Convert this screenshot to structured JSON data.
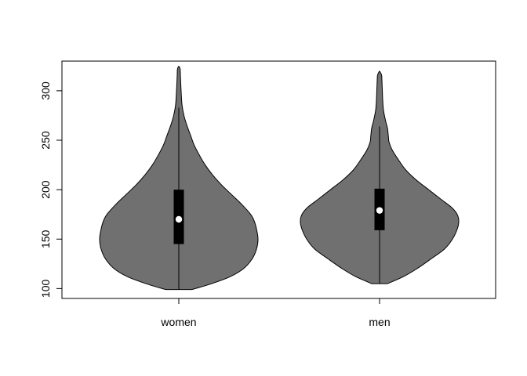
{
  "chart_data": {
    "type": "violin",
    "categories": [
      "women",
      "men"
    ],
    "ylim": [
      90,
      330
    ],
    "yticks": [
      100,
      150,
      200,
      250,
      300
    ],
    "ytick_labels": [
      "100",
      "150",
      "200",
      "250",
      "300"
    ],
    "fill_color": "#707070",
    "box_color": "#000000",
    "median_color": "#ffffff",
    "series": [
      {
        "min": 99,
        "max": 325,
        "whisker_low": 99,
        "whisker_high": 283,
        "q1": 145,
        "median": 170,
        "q3": 200,
        "density": [
          [
            99,
            18
          ],
          [
            105,
            45
          ],
          [
            112,
            70
          ],
          [
            120,
            88
          ],
          [
            130,
            100
          ],
          [
            140,
            106
          ],
          [
            150,
            108
          ],
          [
            160,
            106
          ],
          [
            168,
            103
          ],
          [
            175,
            98
          ],
          [
            185,
            86
          ],
          [
            195,
            72
          ],
          [
            205,
            58
          ],
          [
            215,
            46
          ],
          [
            225,
            36
          ],
          [
            235,
            28
          ],
          [
            245,
            21
          ],
          [
            255,
            16
          ],
          [
            265,
            11
          ],
          [
            275,
            7
          ],
          [
            285,
            4.5
          ],
          [
            295,
            3.5
          ],
          [
            305,
            2.8
          ],
          [
            315,
            2.2
          ],
          [
            322,
            1.8
          ],
          [
            325,
            0
          ]
        ]
      },
      {
        "min": 105,
        "max": 320,
        "whisker_low": 105,
        "whisker_high": 264,
        "q1": 159,
        "median": 179,
        "q3": 201,
        "density": [
          [
            105,
            10
          ],
          [
            112,
            30
          ],
          [
            120,
            47
          ],
          [
            130,
            65
          ],
          [
            140,
            82
          ],
          [
            150,
            92
          ],
          [
            160,
            98
          ],
          [
            168,
            100
          ],
          [
            175,
            98
          ],
          [
            182,
            91
          ],
          [
            190,
            78
          ],
          [
            200,
            62
          ],
          [
            210,
            46
          ],
          [
            220,
            33
          ],
          [
            230,
            24
          ],
          [
            240,
            16
          ],
          [
            248,
            12
          ],
          [
            255,
            11
          ],
          [
            262,
            10
          ],
          [
            270,
            7.5
          ],
          [
            280,
            5
          ],
          [
            290,
            4
          ],
          [
            300,
            3.5
          ],
          [
            310,
            3
          ],
          [
            316,
            2.5
          ],
          [
            320,
            0
          ]
        ]
      }
    ]
  }
}
